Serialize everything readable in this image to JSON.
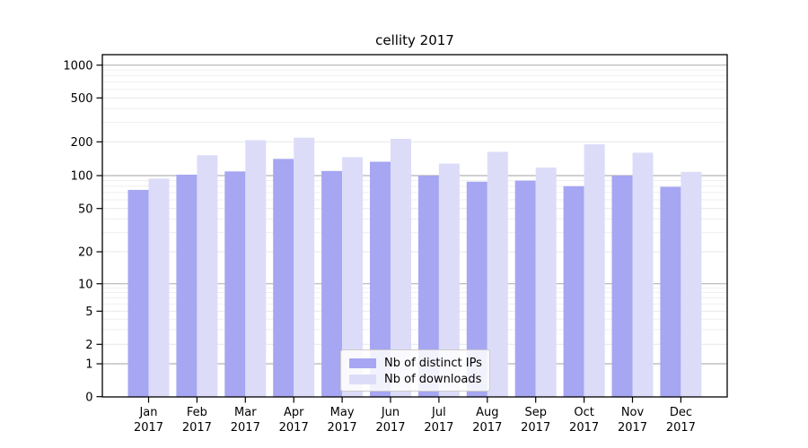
{
  "figure": {
    "title": "cellity 2017"
  },
  "legend": {
    "items": [
      {
        "label": "Nb of distinct IPs",
        "color": "#a6a6f2"
      },
      {
        "label": "Nb of downloads",
        "color": "#dcdcf9"
      }
    ]
  },
  "chart_data": {
    "type": "bar",
    "title": "cellity 2017",
    "categories": [
      "Jan",
      "Feb",
      "Mar",
      "Apr",
      "May",
      "Jun",
      "Jul",
      "Aug",
      "Sep",
      "Oct",
      "Nov",
      "Dec"
    ],
    "category_year": "2017",
    "series": [
      {
        "name": "Nb of distinct IPs",
        "color": "#a6a6f2",
        "values": [
          74,
          102,
          109,
          141,
          110,
          133,
          100,
          88,
          90,
          80,
          100,
          79
        ]
      },
      {
        "name": "Nb of downloads",
        "color": "#dcdcf9",
        "values": [
          94,
          152,
          207,
          218,
          146,
          213,
          128,
          163,
          118,
          190,
          160,
          108
        ]
      }
    ],
    "yscale": "symlog",
    "yticks": [
      0,
      1,
      2,
      5,
      10,
      20,
      50,
      100,
      200,
      500,
      1000
    ],
    "ylim": [
      0,
      1250
    ],
    "xlabel": "",
    "ylabel": "",
    "grid": true,
    "legend_position": "lower center"
  }
}
